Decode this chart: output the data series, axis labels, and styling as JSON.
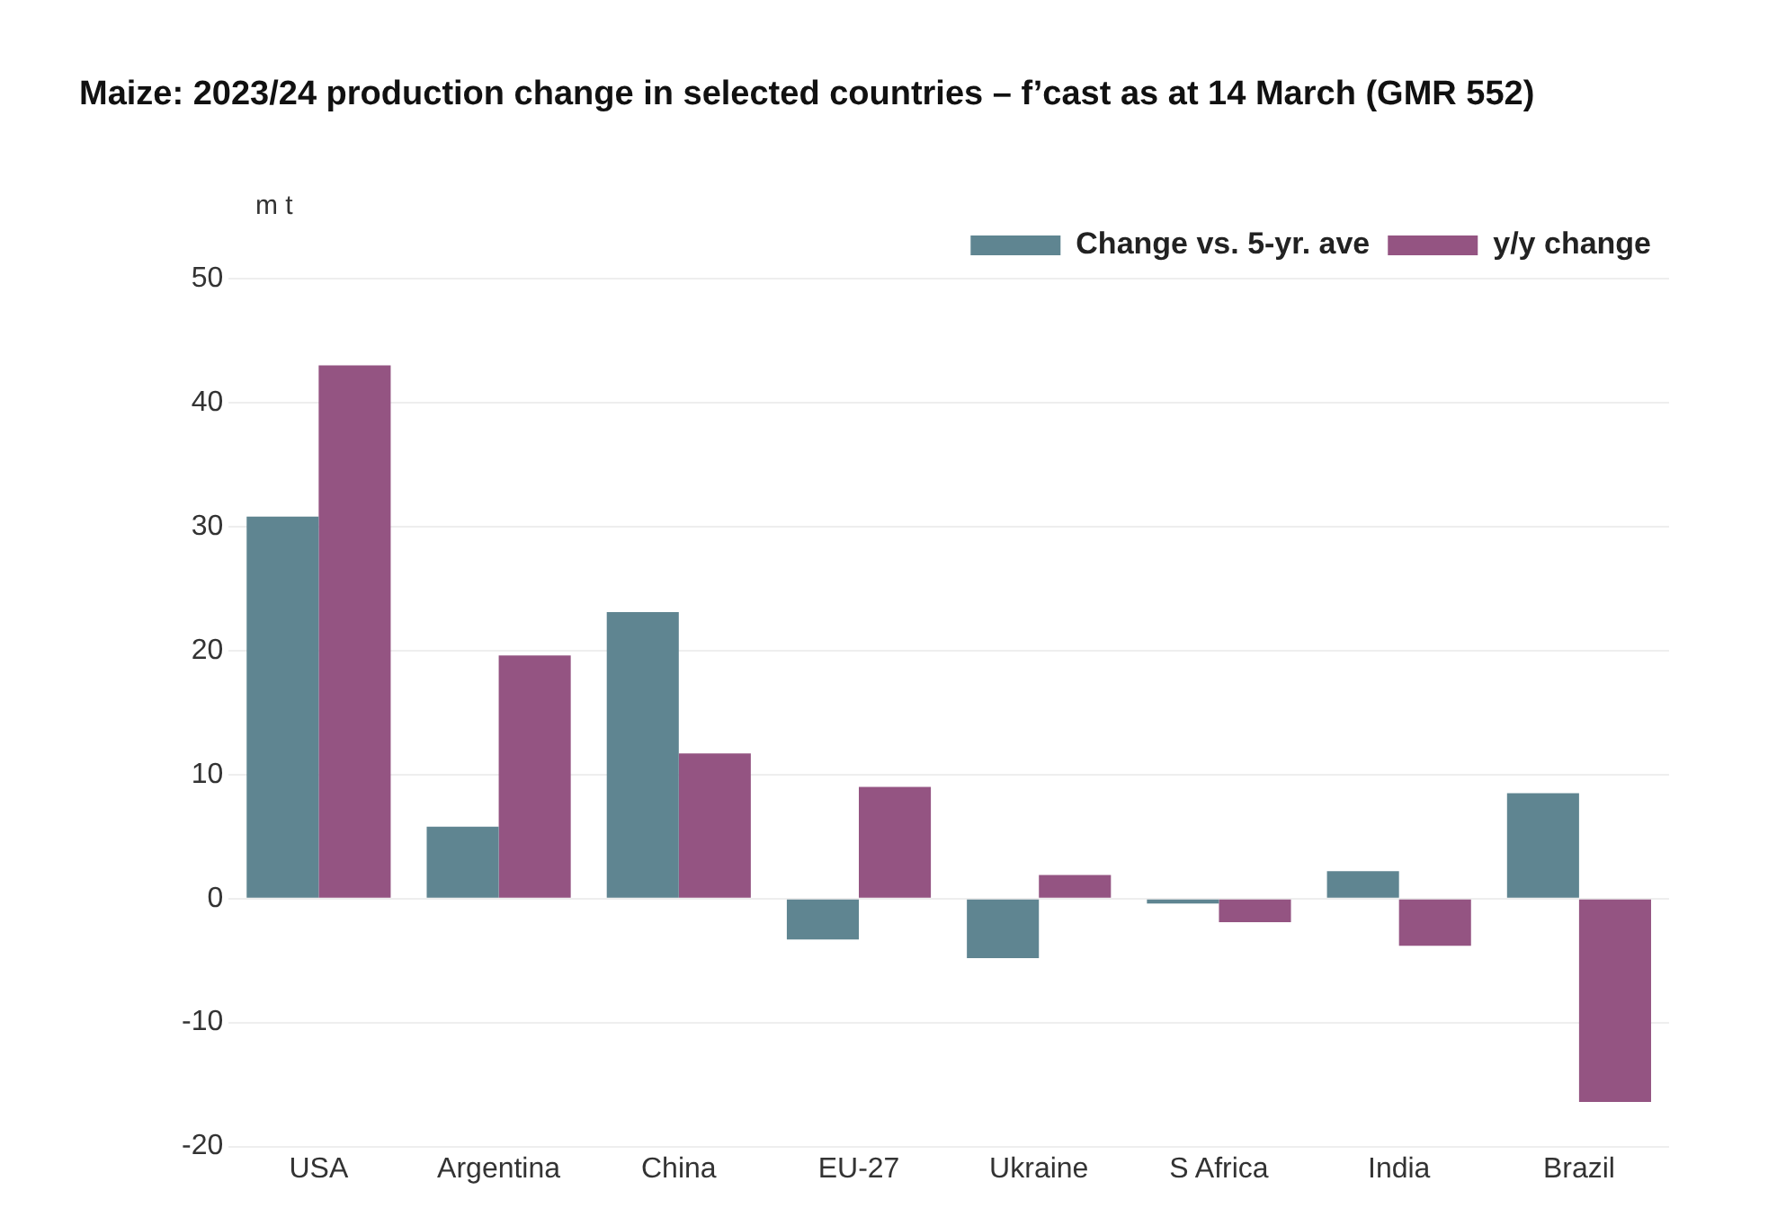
{
  "chart_data": {
    "type": "bar",
    "title": "Maize: 2023/24 production change in selected countries – f’cast as at 14 March (GMR 552)",
    "ylabel": "m t",
    "categories": [
      "USA",
      "Argentina",
      "China",
      "EU-27",
      "Ukraine",
      "S Africa",
      "India",
      "Brazil"
    ],
    "series": [
      {
        "name": "Change vs. 5-yr. ave",
        "color": "#5f8591",
        "values": [
          30.8,
          5.8,
          23.1,
          -3.3,
          -4.8,
          -0.4,
          2.2,
          8.5
        ]
      },
      {
        "name": "y/y change",
        "color": "#945482",
        "values": [
          43.0,
          19.6,
          11.7,
          9.0,
          1.9,
          -1.9,
          -3.8,
          -16.4
        ]
      }
    ],
    "ylim": [
      -20,
      50
    ],
    "yticks": [
      -20,
      -10,
      0,
      10,
      20,
      30,
      40,
      50
    ],
    "grid": "y",
    "legend": "top right"
  }
}
